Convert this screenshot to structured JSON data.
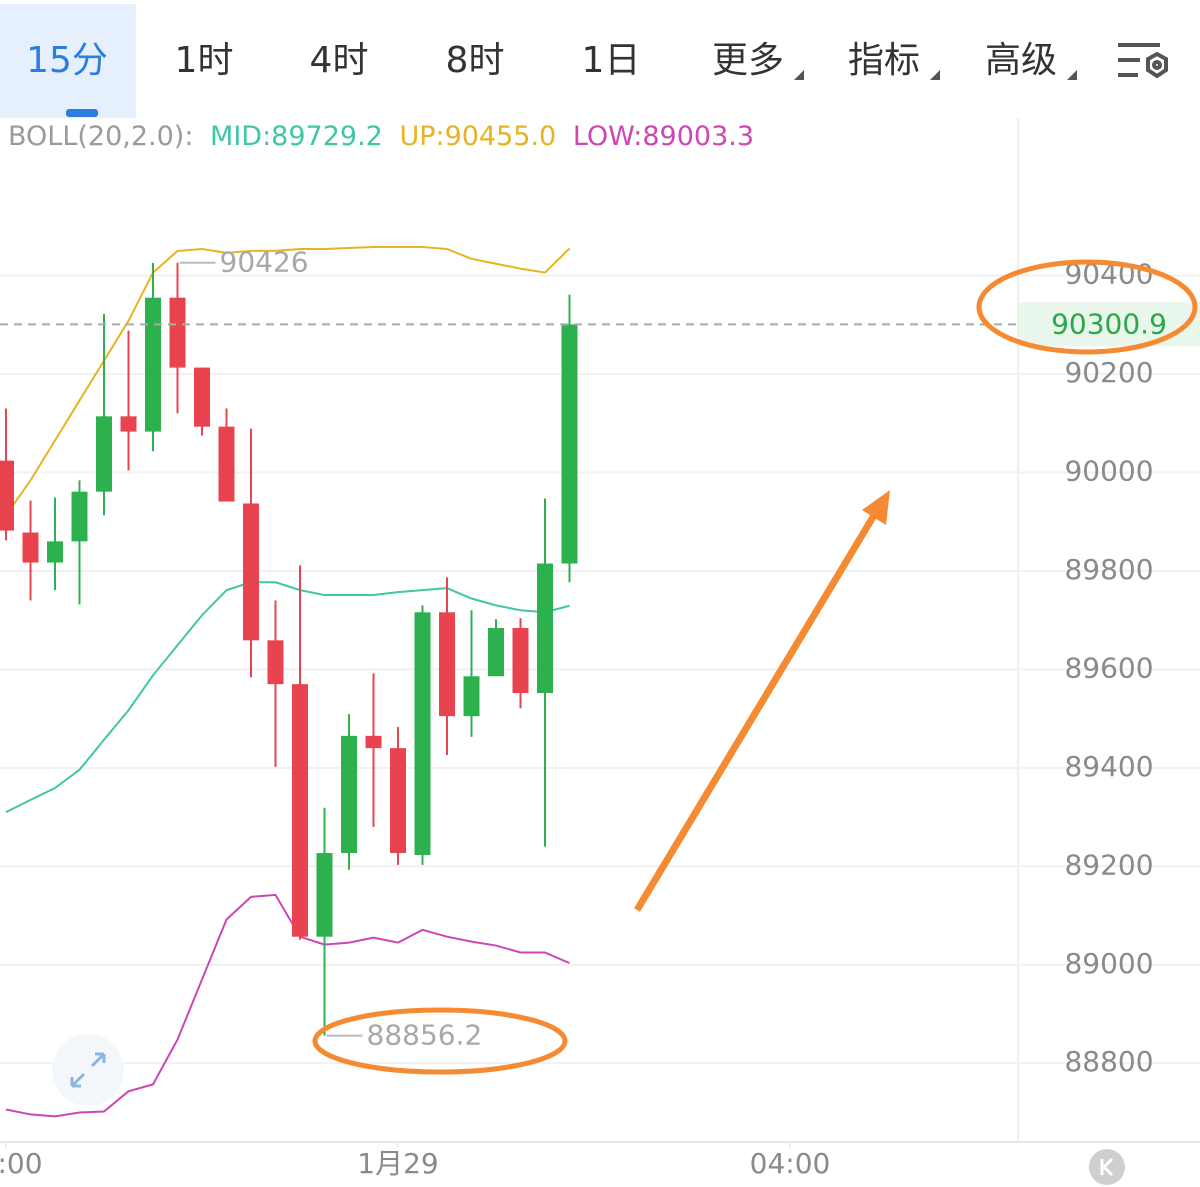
{
  "tabs": [
    "15分",
    "1时",
    "4时",
    "8时",
    "1日",
    "更多",
    "指标",
    "高级"
  ],
  "chart_data": {
    "type": "candlestick",
    "indicator_legend": [
      "BOLL(20,2.0):",
      "MID:89729.2",
      "UP:90455.0",
      "LOW:89003.3"
    ],
    "open": [
      90024,
      89878,
      89817,
      89860,
      89961,
      90114,
      90083,
      90355,
      90213,
      90093,
      89937,
      89659,
      89570,
      89057,
      89227,
      89465,
      89440,
      89223,
      89716,
      89505,
      89586,
      89684,
      89552,
      89815
    ],
    "high": [
      90130,
      89943,
      89949,
      89984,
      90322,
      90288,
      90425.6,
      90426,
      90213,
      90130,
      90089,
      89740,
      89811,
      89319,
      89509,
      89592,
      89483,
      89730,
      89787,
      89720,
      89702,
      89704,
      89947,
      90361
    ],
    "low": [
      89862,
      89740,
      89761,
      89732,
      89913,
      90004,
      90043,
      90120,
      90075,
      89941,
      89584,
      89402,
      89051,
      88856.2,
      89193,
      89280,
      89203,
      89203,
      89426,
      89463,
      89586,
      89521,
      89240,
      89777
    ],
    "close": [
      89882,
      89817,
      89860,
      89961,
      90114,
      90083,
      90355,
      90213,
      90093,
      89941,
      89659,
      89570,
      89057,
      89227,
      89465,
      89440,
      89227,
      89716,
      89505,
      89586,
      89684,
      89552,
      89815,
      90300.9
    ],
    "bands": [
      {
        "name": "UP",
        "color": "#e6b422",
        "values": [
          89913,
          89984,
          90065,
          90146,
          90227,
          90308,
          90406,
          90450,
          90454,
          90446,
          90450,
          90450,
          90454,
          90454,
          90456,
          90458,
          90458,
          90458,
          90454,
          90434,
          90424,
          90414,
          90406,
          90455.0
        ]
      },
      {
        "name": "MID",
        "color": "#3fc6a6",
        "values": [
          89310,
          89335,
          89359,
          89396,
          89457,
          89517,
          89588,
          89649,
          89710,
          89761,
          89777,
          89777,
          89761,
          89751,
          89751,
          89751,
          89757,
          89761,
          89765,
          89744,
          89730,
          89720,
          89716,
          89729.2
        ]
      },
      {
        "name": "LOW",
        "color": "#cc46b6",
        "values": [
          88706,
          88696,
          88692,
          88700,
          88702,
          88743,
          88757,
          88848,
          88970,
          89092,
          89138,
          89142,
          89057,
          89041,
          89045,
          89055,
          89045,
          89071,
          89057,
          89047,
          89039,
          89025,
          89025,
          89003.3
        ]
      }
    ],
    "up_color": "#2db14f",
    "down_color": "#e8434f",
    "ylim": [
      88640,
      90720
    ],
    "yticks": [
      88800,
      89000,
      89200,
      89400,
      89600,
      89800,
      90000,
      90200,
      90400
    ],
    "xticks": [
      {
        "value": 0,
        "label": ":00"
      },
      {
        "value": 16,
        "label": "1月29"
      },
      {
        "value": 32,
        "label": "04:00"
      }
    ],
    "grid": true
  }
}
